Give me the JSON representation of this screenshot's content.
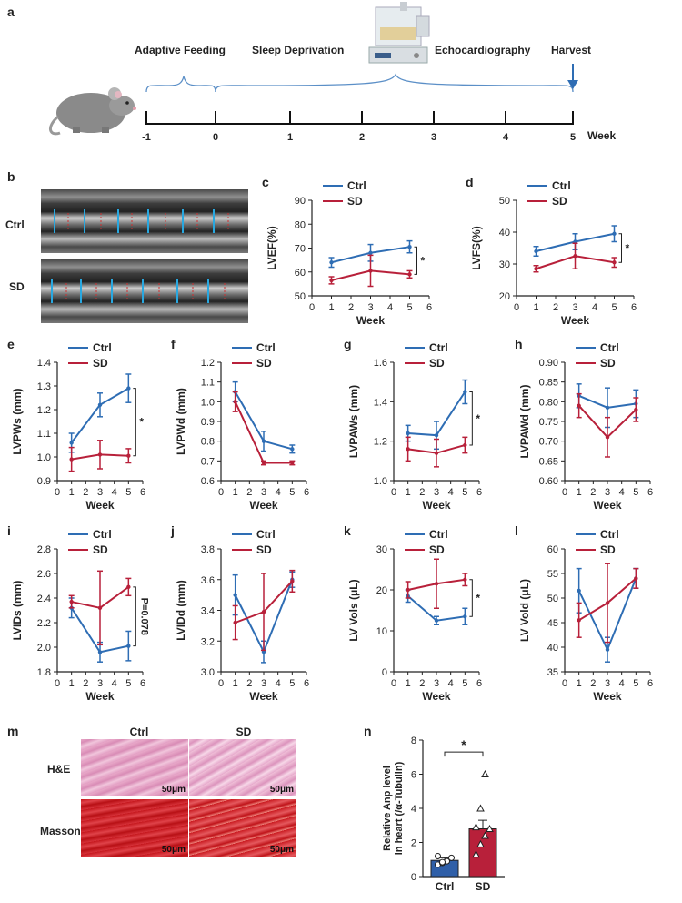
{
  "panel_labels": {
    "a": "a",
    "b": "b",
    "c": "c",
    "d": "d",
    "e": "e",
    "f": "f",
    "g": "g",
    "h": "h",
    "i": "i",
    "j": "j",
    "k": "k",
    "l": "l",
    "m": "m",
    "n": "n"
  },
  "timeline": {
    "phases": [
      "Adaptive Feeding",
      "Sleep Deprivation",
      "Echocardiography",
      "Harvest"
    ],
    "ticks": [
      "-1",
      "0",
      "1",
      "2",
      "3",
      "4",
      "5"
    ],
    "unit": "Week"
  },
  "panel_b": {
    "rows": [
      "Ctrl",
      "SD"
    ]
  },
  "panel_m": {
    "columns": [
      "Ctrl",
      "SD"
    ],
    "rows": [
      "H&E",
      "Masson"
    ],
    "scale_bar": "50μm"
  },
  "colors": {
    "ctrl": "#2e6db4",
    "sd": "#b8203a",
    "bar_ctrl": "#2f5fa8",
    "bar_sd": "#b8203a"
  },
  "legend": {
    "ctrl": "Ctrl",
    "sd": "SD"
  },
  "chart_data": [
    {
      "panel": "c",
      "type": "line",
      "ylabel": "LVEF(%)",
      "xlabel": "Week",
      "x": [
        1,
        3,
        5
      ],
      "xlim": [
        0,
        6
      ],
      "ylim": [
        50,
        90
      ],
      "yticks": [
        50,
        60,
        70,
        80,
        90
      ],
      "xticks": [
        0,
        1,
        2,
        3,
        4,
        5,
        6
      ],
      "series": [
        {
          "name": "Ctrl",
          "values": [
            64,
            68,
            70.5
          ],
          "err": [
            2,
            3.5,
            2.5
          ]
        },
        {
          "name": "SD",
          "values": [
            56.5,
            60.5,
            59
          ],
          "err": [
            1.5,
            6.5,
            1.5
          ]
        }
      ],
      "annotation": "*"
    },
    {
      "panel": "d",
      "type": "line",
      "ylabel": "LVFS(%)",
      "xlabel": "Week",
      "x": [
        1,
        3,
        5
      ],
      "xlim": [
        0,
        6
      ],
      "ylim": [
        20,
        50
      ],
      "yticks": [
        20,
        30,
        40,
        50
      ],
      "xticks": [
        0,
        1,
        2,
        3,
        4,
        5,
        6
      ],
      "series": [
        {
          "name": "Ctrl",
          "values": [
            34,
            37,
            39.5
          ],
          "err": [
            1.5,
            2.5,
            2.5
          ]
        },
        {
          "name": "SD",
          "values": [
            28.5,
            32.5,
            30.5
          ],
          "err": [
            1,
            4,
            1.5
          ]
        }
      ],
      "annotation": "*"
    },
    {
      "panel": "e",
      "type": "line",
      "ylabel": "LVPWs (mm)",
      "xlabel": "Week",
      "x": [
        1,
        3,
        5
      ],
      "xlim": [
        0,
        6
      ],
      "ylim": [
        0.9,
        1.4
      ],
      "yticks": [
        "0.9",
        "1.0",
        "1.1",
        "1.2",
        "1.3",
        "1.4"
      ],
      "xticks": [
        0,
        1,
        2,
        3,
        4,
        5,
        6
      ],
      "series": [
        {
          "name": "Ctrl",
          "values": [
            1.06,
            1.22,
            1.29
          ],
          "err": [
            0.04,
            0.05,
            0.06
          ]
        },
        {
          "name": "SD",
          "values": [
            0.99,
            1.01,
            1.005
          ],
          "err": [
            0.05,
            0.06,
            0.03
          ]
        }
      ],
      "annotation": "*"
    },
    {
      "panel": "f",
      "type": "line",
      "ylabel": "LVPWd (mm)",
      "xlabel": "Week",
      "x": [
        1,
        3,
        5
      ],
      "xlim": [
        0,
        6
      ],
      "ylim": [
        0.6,
        1.2
      ],
      "yticks": [
        "0.6",
        "0.7",
        "0.8",
        "0.9",
        "1.0",
        "1.1",
        "1.2"
      ],
      "xticks": [
        0,
        1,
        2,
        3,
        4,
        5,
        6
      ],
      "series": [
        {
          "name": "Ctrl",
          "values": [
            1.05,
            0.8,
            0.76
          ],
          "err": [
            0.05,
            0.05,
            0.02
          ]
        },
        {
          "name": "SD",
          "values": [
            1.0,
            0.69,
            0.69
          ],
          "err": [
            0.05,
            0.01,
            0.01
          ]
        }
      ],
      "annotation": ""
    },
    {
      "panel": "g",
      "type": "line",
      "ylabel": "LVPAWs (mm)",
      "xlabel": "Week",
      "x": [
        1,
        3,
        5
      ],
      "xlim": [
        0,
        6
      ],
      "ylim": [
        1.0,
        1.6
      ],
      "yticks": [
        "1.0",
        "1.2",
        "1.4",
        "1.6"
      ],
      "xticks": [
        0,
        1,
        2,
        3,
        4,
        5,
        6
      ],
      "series": [
        {
          "name": "Ctrl",
          "values": [
            1.24,
            1.23,
            1.45
          ],
          "err": [
            0.04,
            0.07,
            0.06
          ]
        },
        {
          "name": "SD",
          "values": [
            1.16,
            1.14,
            1.18
          ],
          "err": [
            0.06,
            0.07,
            0.04
          ]
        }
      ],
      "annotation": "*"
    },
    {
      "panel": "h",
      "type": "line",
      "ylabel": "LVPAWd (mm)",
      "xlabel": "Week",
      "x": [
        1,
        3,
        5
      ],
      "xlim": [
        0,
        6
      ],
      "ylim": [
        0.6,
        0.9
      ],
      "yticks": [
        "0.60",
        "0.65",
        "0.70",
        "0.75",
        "0.80",
        "0.85",
        "0.90"
      ],
      "xticks": [
        0,
        1,
        2,
        3,
        4,
        5,
        6
      ],
      "series": [
        {
          "name": "Ctrl",
          "values": [
            0.815,
            0.785,
            0.795
          ],
          "err": [
            0.03,
            0.05,
            0.035
          ]
        },
        {
          "name": "SD",
          "values": [
            0.79,
            0.71,
            0.78
          ],
          "err": [
            0.03,
            0.05,
            0.03
          ]
        }
      ],
      "annotation": ""
    },
    {
      "panel": "i",
      "type": "line",
      "ylabel": "LVIDs (mm)",
      "xlabel": "Week",
      "x": [
        1,
        3,
        5
      ],
      "xlim": [
        0,
        6
      ],
      "ylim": [
        1.8,
        2.8
      ],
      "yticks": [
        "1.8",
        "2.0",
        "2.2",
        "2.4",
        "2.6",
        "2.8"
      ],
      "xticks": [
        0,
        1,
        2,
        3,
        4,
        5,
        6
      ],
      "series": [
        {
          "name": "Ctrl",
          "values": [
            2.32,
            1.96,
            2.01
          ],
          "err": [
            0.08,
            0.08,
            0.12
          ]
        },
        {
          "name": "SD",
          "values": [
            2.37,
            2.32,
            2.49
          ],
          "err": [
            0.05,
            0.3,
            0.07
          ]
        }
      ],
      "annotation": "P=0.078"
    },
    {
      "panel": "j",
      "type": "line",
      "ylabel": "LVIDd (mm)",
      "xlabel": "Week",
      "x": [
        1,
        3,
        5
      ],
      "xlim": [
        0,
        6
      ],
      "ylim": [
        3.0,
        3.8
      ],
      "yticks": [
        "3.0",
        "3.2",
        "3.4",
        "3.6",
        "3.8"
      ],
      "xticks": [
        0,
        1,
        2,
        3,
        4,
        5,
        6
      ],
      "series": [
        {
          "name": "Ctrl",
          "values": [
            3.5,
            3.13,
            3.6
          ],
          "err": [
            0.13,
            0.07,
            0.05
          ]
        },
        {
          "name": "SD",
          "values": [
            3.32,
            3.39,
            3.59
          ],
          "err": [
            0.11,
            0.25,
            0.07
          ]
        }
      ],
      "annotation": ""
    },
    {
      "panel": "k",
      "type": "line",
      "ylabel": "LV Vols (μL)",
      "xlabel": "Week",
      "x": [
        1,
        3,
        5
      ],
      "xlim": [
        0,
        6
      ],
      "ylim": [
        0,
        30
      ],
      "yticks": [
        0,
        10,
        20,
        30
      ],
      "xticks": [
        0,
        1,
        2,
        3,
        4,
        5,
        6
      ],
      "series": [
        {
          "name": "Ctrl",
          "values": [
            18.5,
            12.5,
            13.5
          ],
          "err": [
            1.5,
            1,
            2
          ]
        },
        {
          "name": "SD",
          "values": [
            20,
            21.5,
            22.5
          ],
          "err": [
            2,
            6,
            1.5
          ]
        }
      ],
      "annotation": "*"
    },
    {
      "panel": "l",
      "type": "line",
      "ylabel": "LV Vold (μL)",
      "xlabel": "Week",
      "x": [
        1,
        3,
        5
      ],
      "xlim": [
        0,
        6
      ],
      "ylim": [
        35,
        60
      ],
      "yticks": [
        35,
        40,
        45,
        50,
        55,
        60
      ],
      "xticks": [
        0,
        1,
        2,
        3,
        4,
        5,
        6
      ],
      "series": [
        {
          "name": "Ctrl",
          "values": [
            51.5,
            39.5,
            54
          ],
          "err": [
            4.5,
            2.5,
            2
          ]
        },
        {
          "name": "SD",
          "values": [
            45.5,
            49,
            54
          ],
          "err": [
            3.5,
            8,
            2
          ]
        }
      ],
      "annotation": ""
    },
    {
      "panel": "n",
      "type": "bar",
      "categories": [
        "Ctrl",
        "SD"
      ],
      "values": [
        0.95,
        2.8
      ],
      "err": [
        0.15,
        0.5
      ],
      "points": [
        [
          0.7,
          0.8,
          0.9,
          1.1,
          1.2,
          0.85
        ],
        [
          1.3,
          1.9,
          2.4,
          2.8,
          2.9,
          4.0,
          6.0
        ]
      ],
      "ylabel": "Relative Anp level in heart (/α-Tubulin)",
      "ylim": [
        0,
        8
      ],
      "yticks": [
        0,
        2,
        4,
        6,
        8
      ],
      "annotation": "*"
    }
  ]
}
